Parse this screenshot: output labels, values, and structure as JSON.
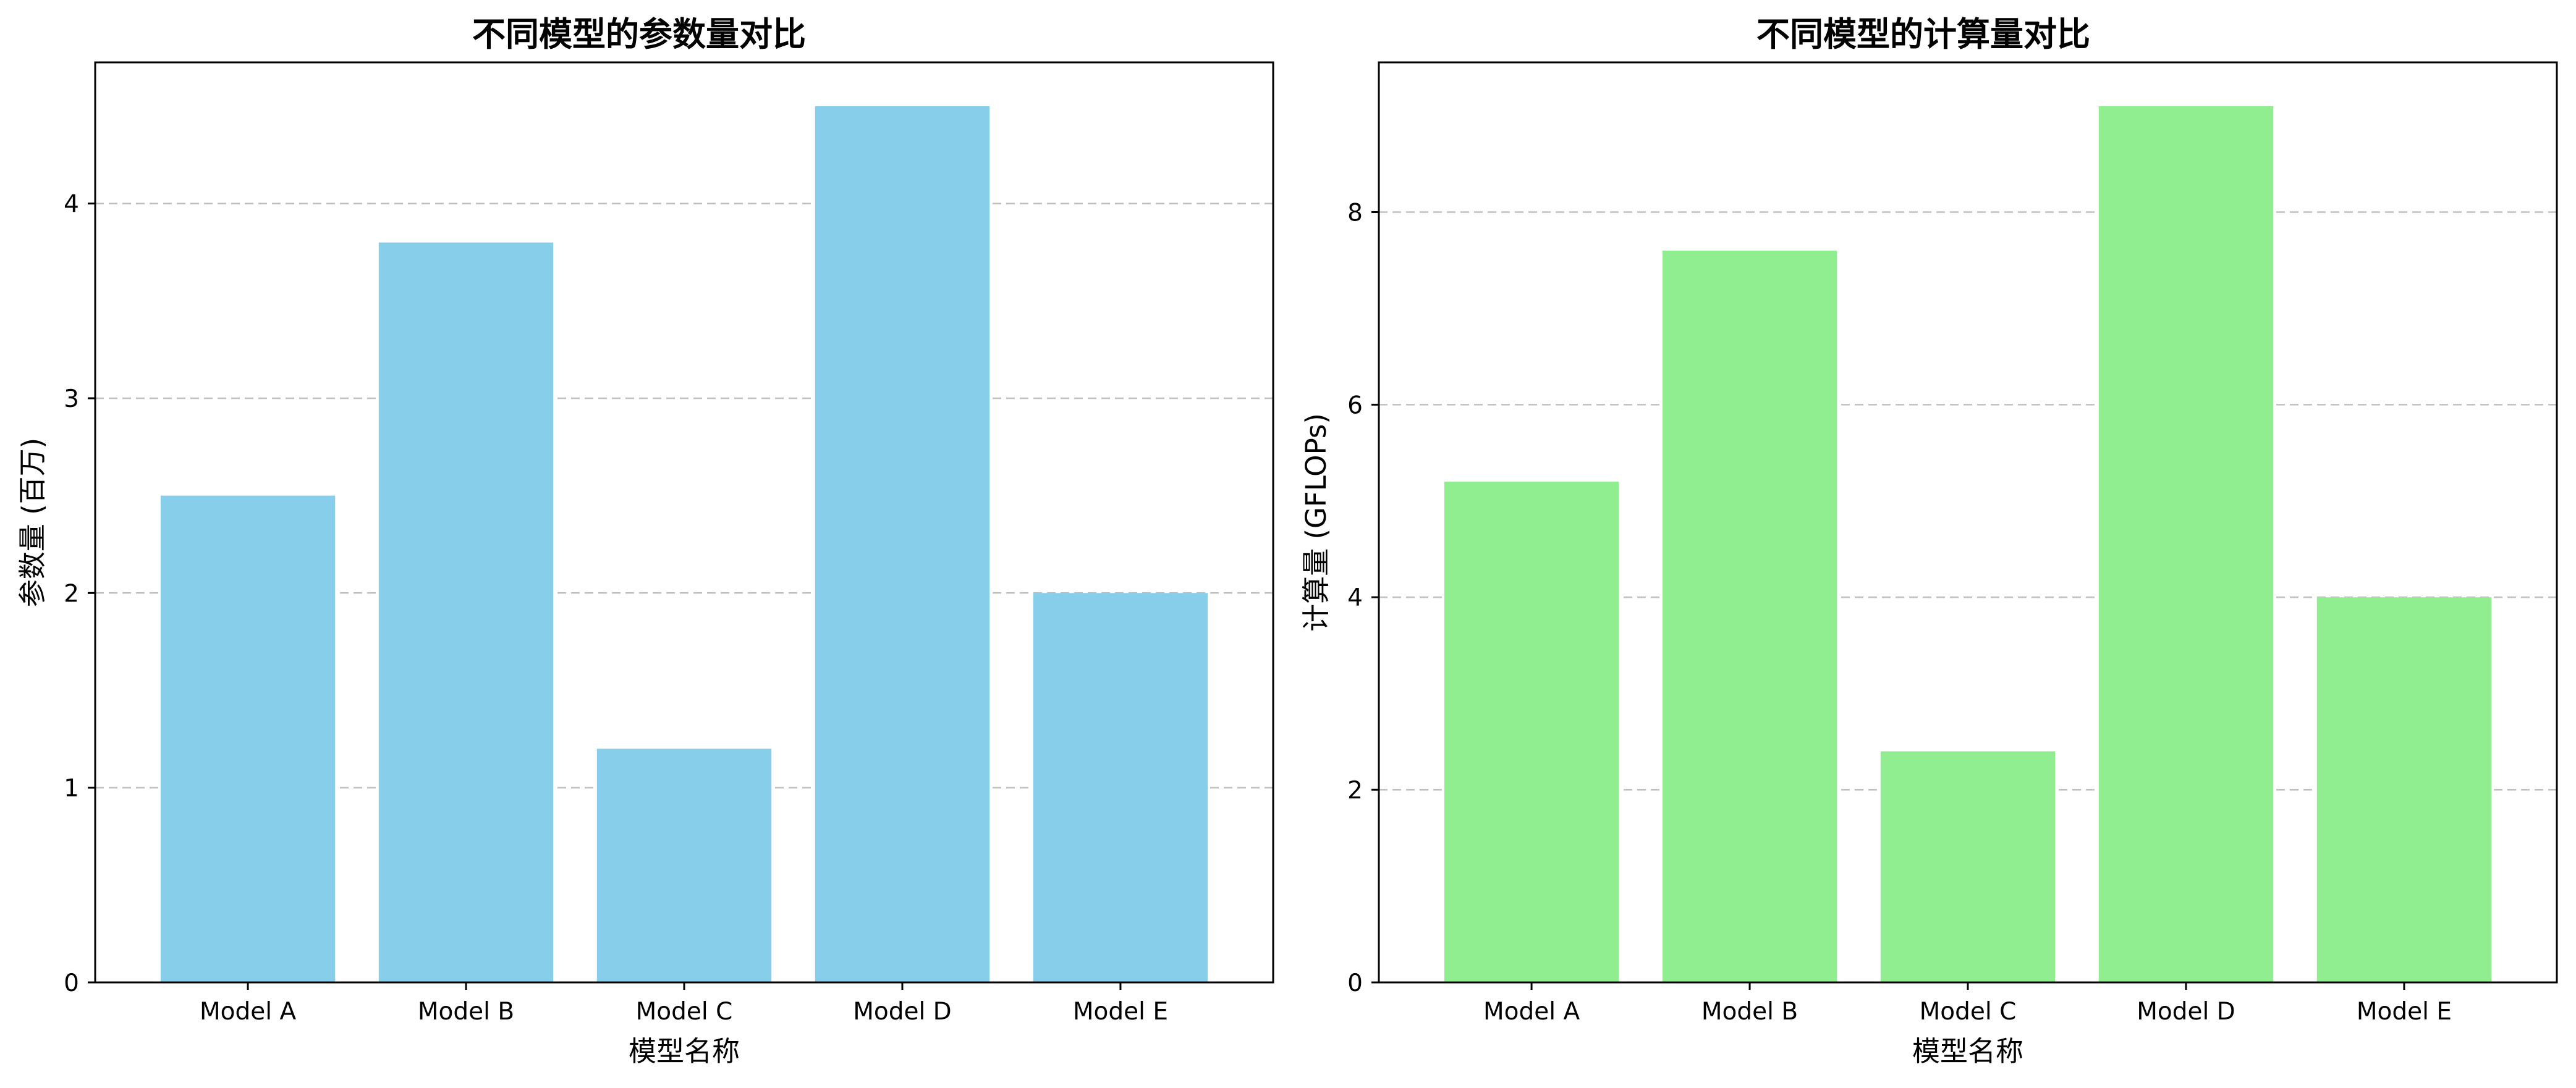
{
  "chart_data": [
    {
      "type": "bar",
      "title": "不同模型的参数量对比",
      "xlabel": "模型名称",
      "ylabel": "参数量 (百万)",
      "categories": [
        "Model A",
        "Model B",
        "Model C",
        "Model D",
        "Model E"
      ],
      "values": [
        2.5,
        3.8,
        1.2,
        4.5,
        2.0
      ],
      "ylim": [
        0,
        4.725
      ],
      "yticks": [
        "0",
        "1",
        "2",
        "3",
        "4"
      ],
      "grid": "y-dashed",
      "bar_color": "#87ceeb"
    },
    {
      "type": "bar",
      "title": "不同模型的计算量对比",
      "xlabel": "模型名称",
      "ylabel": "计算量 (GFLOPs)",
      "categories": [
        "Model A",
        "Model B",
        "Model C",
        "Model D",
        "Model E"
      ],
      "values": [
        5.2,
        7.6,
        2.4,
        9.1,
        4.0
      ],
      "ylim": [
        0,
        9.555
      ],
      "yticks": [
        "0",
        "2",
        "4",
        "6",
        "8"
      ],
      "grid": "y-dashed",
      "bar_color": "#90ee90"
    }
  ]
}
